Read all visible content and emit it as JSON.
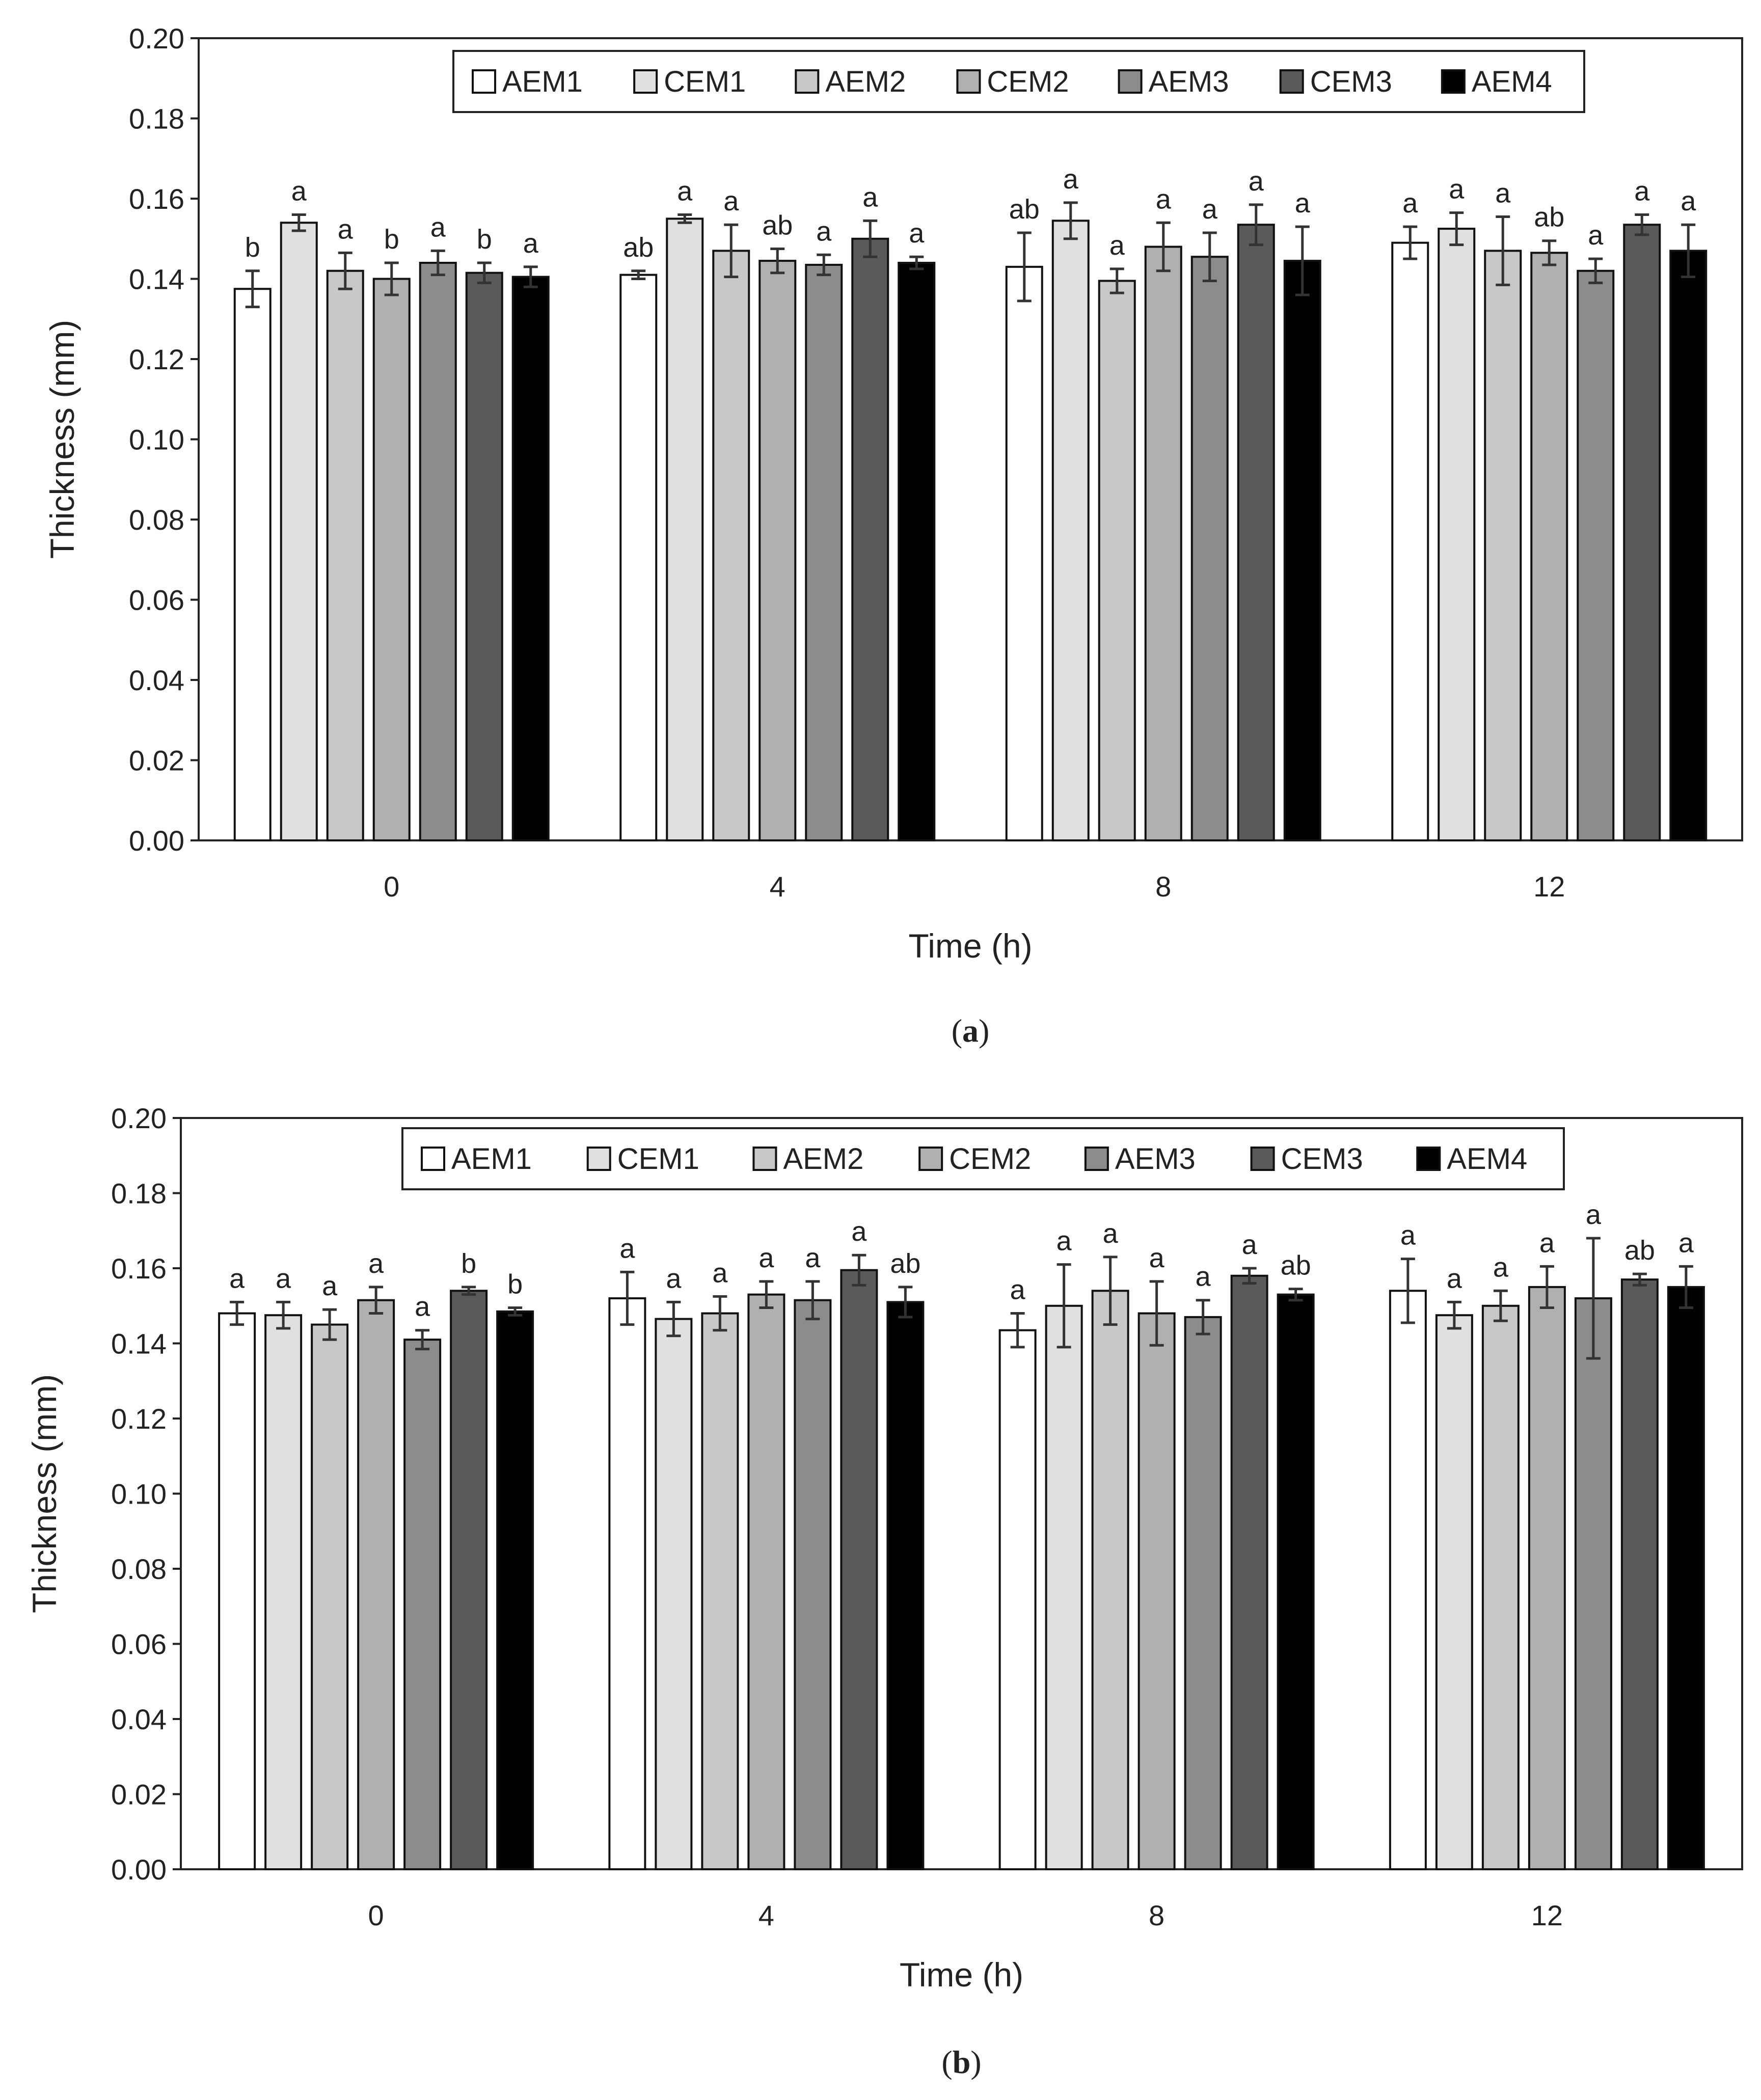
{
  "chart_data": [
    {
      "type": "bar",
      "caption_open": "(",
      "caption_letter": "a",
      "caption_close": ")",
      "xlabel": "Time (h)",
      "ylabel": "Thickness (mm)",
      "ylim": [
        0,
        0.2
      ],
      "yticks": [
        "0.00",
        "0.02",
        "0.04",
        "0.06",
        "0.08",
        "0.10",
        "0.12",
        "0.14",
        "0.16",
        "0.18",
        "0.20"
      ],
      "categories": [
        "0",
        "4",
        "8",
        "12"
      ],
      "legend_position": "top-center",
      "series": [
        {
          "name": "AEM1",
          "color": "#ffffff",
          "values": [
            0.1375,
            0.141,
            0.143,
            0.149
          ],
          "errors": [
            0.0045,
            0.001,
            0.0085,
            0.004
          ],
          "letters": [
            "b",
            "ab",
            "ab",
            "a"
          ]
        },
        {
          "name": "CEM1",
          "color": "#e0e0e0",
          "values": [
            0.154,
            0.155,
            0.1545,
            0.1525
          ],
          "errors": [
            0.002,
            0.001,
            0.0045,
            0.004
          ],
          "letters": [
            "a",
            "a",
            "a",
            "a"
          ]
        },
        {
          "name": "AEM2",
          "color": "#c8c8c8",
          "values": [
            0.142,
            0.147,
            0.1395,
            0.147
          ],
          "errors": [
            0.0045,
            0.0065,
            0.003,
            0.0085
          ],
          "letters": [
            "a",
            "a",
            "a",
            "a"
          ]
        },
        {
          "name": "CEM2",
          "color": "#b0b0b0",
          "values": [
            0.14,
            0.1445,
            0.148,
            0.1465
          ],
          "errors": [
            0.004,
            0.003,
            0.006,
            0.003
          ],
          "letters": [
            "b",
            "ab",
            "a",
            "ab"
          ]
        },
        {
          "name": "AEM3",
          "color": "#8c8c8c",
          "values": [
            0.144,
            0.1435,
            0.1455,
            0.142
          ],
          "errors": [
            0.003,
            0.0025,
            0.006,
            0.003
          ],
          "letters": [
            "a",
            "a",
            "a",
            "a"
          ]
        },
        {
          "name": "CEM3",
          "color": "#5a5a5a",
          "values": [
            0.1415,
            0.15,
            0.1535,
            0.1535
          ],
          "errors": [
            0.0025,
            0.0045,
            0.005,
            0.0025
          ],
          "letters": [
            "b",
            "a",
            "a",
            "a"
          ]
        },
        {
          "name": "AEM4",
          "color": "#000000",
          "values": [
            0.1405,
            0.144,
            0.1445,
            0.147
          ],
          "errors": [
            0.0025,
            0.0015,
            0.0085,
            0.0065
          ],
          "letters": [
            "a",
            "a",
            "a",
            "a"
          ]
        }
      ]
    },
    {
      "type": "bar",
      "caption_open": "(",
      "caption_letter": "b",
      "caption_close": ")",
      "xlabel": "Time (h)",
      "ylabel": "Thickness (mm)",
      "ylim": [
        0,
        0.2
      ],
      "yticks": [
        "0.00",
        "0.02",
        "0.04",
        "0.06",
        "0.08",
        "0.10",
        "0.12",
        "0.14",
        "0.16",
        "0.18",
        "0.20"
      ],
      "categories": [
        "0",
        "4",
        "8",
        "12"
      ],
      "legend_position": "top-center",
      "series": [
        {
          "name": "AEM1",
          "color": "#ffffff",
          "values": [
            0.148,
            0.152,
            0.1435,
            0.154
          ],
          "errors": [
            0.003,
            0.007,
            0.0045,
            0.0085
          ],
          "letters": [
            "a",
            "a",
            "a",
            "a"
          ]
        },
        {
          "name": "CEM1",
          "color": "#e0e0e0",
          "values": [
            0.1475,
            0.1465,
            0.15,
            0.1475
          ],
          "errors": [
            0.0035,
            0.0045,
            0.011,
            0.0035
          ],
          "letters": [
            "a",
            "a",
            "a",
            "a"
          ]
        },
        {
          "name": "AEM2",
          "color": "#c8c8c8",
          "values": [
            0.145,
            0.148,
            0.154,
            0.15
          ],
          "errors": [
            0.004,
            0.0045,
            0.009,
            0.004
          ],
          "letters": [
            "a",
            "a",
            "a",
            "a"
          ]
        },
        {
          "name": "CEM2",
          "color": "#b0b0b0",
          "values": [
            0.1515,
            0.153,
            0.148,
            0.155
          ],
          "errors": [
            0.0035,
            0.0035,
            0.0085,
            0.0055
          ],
          "letters": [
            "a",
            "a",
            "a",
            "a"
          ]
        },
        {
          "name": "AEM3",
          "color": "#8c8c8c",
          "values": [
            0.141,
            0.1515,
            0.147,
            0.152
          ],
          "errors": [
            0.0025,
            0.005,
            0.0045,
            0.016
          ],
          "letters": [
            "a",
            "a",
            "a",
            "a"
          ]
        },
        {
          "name": "CEM3",
          "color": "#5a5a5a",
          "values": [
            0.154,
            0.1595,
            0.158,
            0.157
          ],
          "errors": [
            0.001,
            0.004,
            0.002,
            0.0015
          ],
          "letters": [
            "b",
            "a",
            "a",
            "ab"
          ]
        },
        {
          "name": "AEM4",
          "color": "#000000",
          "values": [
            0.1485,
            0.151,
            0.153,
            0.155
          ],
          "errors": [
            0.001,
            0.004,
            0.0015,
            0.0055
          ],
          "letters": [
            "b",
            "ab",
            "ab",
            "a"
          ]
        }
      ]
    }
  ]
}
